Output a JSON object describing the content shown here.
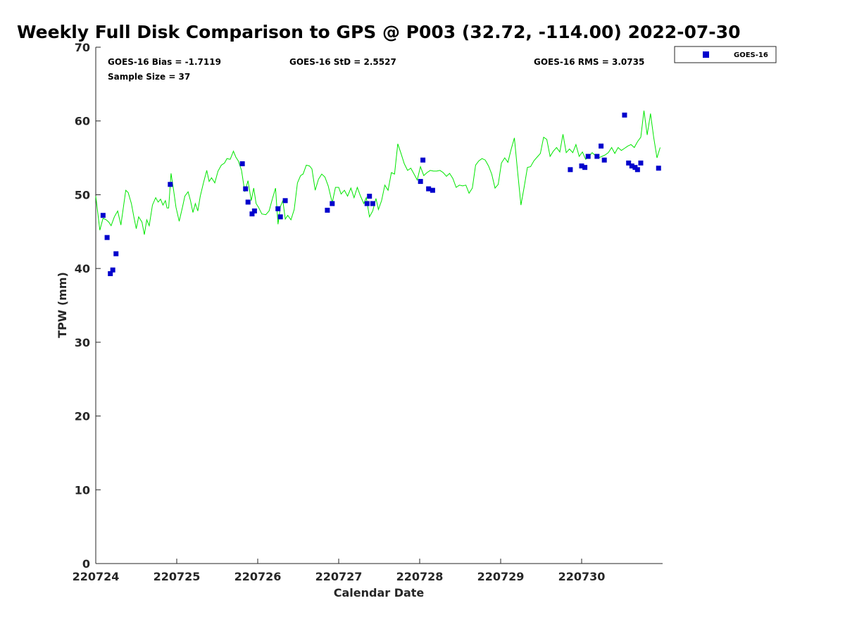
{
  "chart_data": {
    "type": "scatter",
    "title": "Weekly Full Disk Comparison to GPS @ P003 (32.72, -114.00) 2022-07-30",
    "xlabel": "Calendar Date",
    "ylabel": "TPW (mm)",
    "xlim": [
      "220724",
      "220731"
    ],
    "ylim": [
      0,
      70
    ],
    "yticks": [
      0,
      10,
      20,
      30,
      40,
      50,
      60,
      70
    ],
    "xticks": [
      "220724",
      "220725",
      "220726",
      "220727",
      "220728",
      "220729",
      "220730"
    ],
    "grid": false,
    "legend_position": "outside top-right",
    "stats": {
      "bias": "GOES-16 Bias = -1.7119",
      "std": "GOES-16 StD = 2.5527",
      "rms": "GOES-16 RMS = 3.0735",
      "sample": "Sample Size = 37"
    },
    "series": [
      {
        "name": "GOES-16",
        "kind": "scatter",
        "color": "#0000cc",
        "marker": "square",
        "points": [
          [
            0.09,
            47.2
          ],
          [
            0.14,
            44.2
          ],
          [
            0.18,
            39.3
          ],
          [
            0.21,
            39.8
          ],
          [
            0.25,
            42.0
          ],
          [
            0.92,
            51.4
          ],
          [
            1.81,
            54.2
          ],
          [
            1.85,
            50.8
          ],
          [
            1.88,
            49.0
          ],
          [
            1.93,
            47.4
          ],
          [
            1.96,
            47.8
          ],
          [
            2.25,
            48.1
          ],
          [
            2.28,
            47.0
          ],
          [
            2.34,
            49.2
          ],
          [
            2.86,
            47.9
          ],
          [
            2.92,
            48.8
          ],
          [
            3.35,
            48.8
          ],
          [
            3.38,
            49.8
          ],
          [
            3.42,
            48.8
          ],
          [
            4.01,
            51.8
          ],
          [
            4.04,
            54.7
          ],
          [
            4.11,
            50.8
          ],
          [
            4.16,
            50.6
          ],
          [
            5.86,
            53.4
          ],
          [
            6.0,
            53.9
          ],
          [
            6.04,
            53.7
          ],
          [
            6.08,
            55.2
          ],
          [
            6.19,
            55.2
          ],
          [
            6.24,
            56.6
          ],
          [
            6.28,
            54.7
          ],
          [
            6.53,
            60.8
          ],
          [
            6.58,
            54.3
          ],
          [
            6.62,
            53.9
          ],
          [
            6.66,
            53.7
          ],
          [
            6.69,
            53.4
          ],
          [
            6.73,
            54.3
          ],
          [
            6.95,
            53.6
          ]
        ]
      },
      {
        "kind": "line",
        "color": "#00e600",
        "points": [
          [
            0.0,
            49.8
          ],
          [
            0.05,
            45.2
          ],
          [
            0.09,
            46.8
          ],
          [
            0.13,
            46.6
          ],
          [
            0.16,
            46.3
          ],
          [
            0.19,
            45.8
          ],
          [
            0.23,
            47.0
          ],
          [
            0.27,
            47.8
          ],
          [
            0.31,
            45.9
          ],
          [
            0.37,
            50.6
          ],
          [
            0.4,
            50.3
          ],
          [
            0.44,
            48.8
          ],
          [
            0.47,
            47.0
          ],
          [
            0.5,
            45.4
          ],
          [
            0.53,
            47.0
          ],
          [
            0.57,
            46.3
          ],
          [
            0.6,
            44.6
          ],
          [
            0.63,
            46.6
          ],
          [
            0.66,
            45.8
          ],
          [
            0.7,
            48.6
          ],
          [
            0.74,
            49.6
          ],
          [
            0.77,
            49.0
          ],
          [
            0.8,
            49.4
          ],
          [
            0.83,
            48.6
          ],
          [
            0.86,
            49.2
          ],
          [
            0.88,
            48.2
          ],
          [
            0.9,
            48.2
          ],
          [
            0.93,
            52.9
          ],
          [
            0.96,
            50.7
          ],
          [
            0.99,
            48.3
          ],
          [
            1.03,
            46.4
          ],
          [
            1.07,
            48.3
          ],
          [
            1.1,
            49.8
          ],
          [
            1.14,
            50.4
          ],
          [
            1.17,
            49.2
          ],
          [
            1.2,
            47.6
          ],
          [
            1.23,
            48.8
          ],
          [
            1.26,
            47.8
          ],
          [
            1.29,
            49.8
          ],
          [
            1.33,
            51.6
          ],
          [
            1.37,
            53.3
          ],
          [
            1.4,
            51.8
          ],
          [
            1.43,
            52.3
          ],
          [
            1.47,
            51.6
          ],
          [
            1.51,
            53.2
          ],
          [
            1.55,
            54.0
          ],
          [
            1.59,
            54.3
          ],
          [
            1.62,
            54.9
          ],
          [
            1.66,
            54.8
          ],
          [
            1.7,
            55.9
          ],
          [
            1.73,
            55.1
          ],
          [
            1.76,
            54.6
          ],
          [
            1.8,
            53.3
          ],
          [
            1.84,
            50.4
          ],
          [
            1.88,
            51.9
          ],
          [
            1.92,
            49.2
          ],
          [
            1.95,
            50.9
          ],
          [
            1.98,
            48.8
          ],
          [
            2.01,
            48.3
          ],
          [
            2.05,
            47.4
          ],
          [
            2.1,
            47.3
          ],
          [
            2.14,
            47.8
          ],
          [
            2.18,
            49.4
          ],
          [
            2.22,
            50.9
          ],
          [
            2.25,
            46.0
          ],
          [
            2.28,
            48.4
          ],
          [
            2.31,
            49.2
          ],
          [
            2.34,
            46.7
          ],
          [
            2.37,
            47.2
          ],
          [
            2.41,
            46.6
          ],
          [
            2.45,
            48.0
          ],
          [
            2.49,
            51.6
          ],
          [
            2.53,
            52.6
          ],
          [
            2.56,
            52.8
          ],
          [
            2.6,
            54.0
          ],
          [
            2.64,
            53.9
          ],
          [
            2.67,
            53.5
          ],
          [
            2.71,
            50.6
          ],
          [
            2.75,
            52.1
          ],
          [
            2.79,
            52.8
          ],
          [
            2.83,
            52.4
          ],
          [
            2.87,
            51.2
          ],
          [
            2.92,
            48.9
          ],
          [
            2.96,
            51.0
          ],
          [
            3.0,
            51.0
          ],
          [
            3.03,
            50.1
          ],
          [
            3.07,
            50.6
          ],
          [
            3.11,
            49.8
          ],
          [
            3.15,
            50.9
          ],
          [
            3.19,
            49.6
          ],
          [
            3.23,
            51.0
          ],
          [
            3.27,
            49.8
          ],
          [
            3.31,
            48.8
          ],
          [
            3.34,
            49.6
          ],
          [
            3.38,
            47.0
          ],
          [
            3.42,
            47.8
          ],
          [
            3.46,
            49.5
          ],
          [
            3.49,
            48.0
          ],
          [
            3.53,
            49.2
          ],
          [
            3.57,
            51.3
          ],
          [
            3.61,
            50.6
          ],
          [
            3.65,
            53.0
          ],
          [
            3.69,
            52.8
          ],
          [
            3.73,
            56.9
          ],
          [
            3.77,
            55.6
          ],
          [
            3.81,
            54.2
          ],
          [
            3.85,
            53.3
          ],
          [
            3.89,
            53.6
          ],
          [
            3.93,
            52.8
          ],
          [
            3.97,
            52.0
          ],
          [
            4.01,
            53.8
          ],
          [
            4.05,
            52.6
          ],
          [
            4.09,
            53.0
          ],
          [
            4.13,
            53.3
          ],
          [
            4.17,
            53.2
          ],
          [
            4.21,
            53.2
          ],
          [
            4.25,
            53.3
          ],
          [
            4.29,
            53.0
          ],
          [
            4.33,
            52.5
          ],
          [
            4.37,
            52.9
          ],
          [
            4.41,
            52.2
          ],
          [
            4.45,
            51.0
          ],
          [
            4.49,
            51.3
          ],
          [
            4.53,
            51.2
          ],
          [
            4.57,
            51.3
          ],
          [
            4.61,
            50.2
          ],
          [
            4.65,
            50.9
          ],
          [
            4.69,
            54.0
          ],
          [
            4.73,
            54.6
          ],
          [
            4.77,
            54.9
          ],
          [
            4.81,
            54.7
          ],
          [
            4.85,
            53.9
          ],
          [
            4.89,
            52.8
          ],
          [
            4.93,
            50.9
          ],
          [
            4.97,
            51.4
          ],
          [
            5.01,
            54.3
          ],
          [
            5.05,
            55.0
          ],
          [
            5.09,
            54.4
          ],
          [
            5.13,
            56.2
          ],
          [
            5.17,
            57.7
          ],
          [
            5.21,
            53.0
          ],
          [
            5.25,
            48.6
          ],
          [
            5.29,
            51.0
          ],
          [
            5.33,
            53.7
          ],
          [
            5.37,
            53.8
          ],
          [
            5.41,
            54.6
          ],
          [
            5.45,
            55.1
          ],
          [
            5.49,
            55.6
          ],
          [
            5.53,
            57.8
          ],
          [
            5.57,
            57.5
          ],
          [
            5.61,
            55.2
          ],
          [
            5.65,
            55.9
          ],
          [
            5.69,
            56.4
          ],
          [
            5.73,
            55.8
          ],
          [
            5.77,
            58.2
          ],
          [
            5.81,
            55.7
          ],
          [
            5.85,
            56.2
          ],
          [
            5.89,
            55.7
          ],
          [
            5.93,
            56.8
          ],
          [
            5.97,
            55.2
          ],
          [
            6.01,
            55.8
          ],
          [
            6.05,
            54.8
          ],
          [
            6.09,
            55.2
          ],
          [
            6.13,
            55.7
          ],
          [
            6.17,
            55.3
          ],
          [
            6.21,
            55.0
          ],
          [
            6.25,
            55.2
          ],
          [
            6.29,
            55.4
          ],
          [
            6.33,
            55.7
          ],
          [
            6.37,
            56.4
          ],
          [
            6.41,
            55.6
          ],
          [
            6.45,
            56.4
          ],
          [
            6.49,
            56.0
          ],
          [
            6.53,
            56.3
          ],
          [
            6.57,
            56.6
          ],
          [
            6.61,
            56.8
          ],
          [
            6.65,
            56.4
          ],
          [
            6.69,
            57.2
          ],
          [
            6.73,
            57.8
          ],
          [
            6.77,
            61.4
          ],
          [
            6.81,
            58.1
          ],
          [
            6.85,
            61.0
          ],
          [
            6.89,
            57.8
          ],
          [
            6.93,
            55.0
          ],
          [
            6.97,
            56.4
          ]
        ]
      }
    ]
  }
}
